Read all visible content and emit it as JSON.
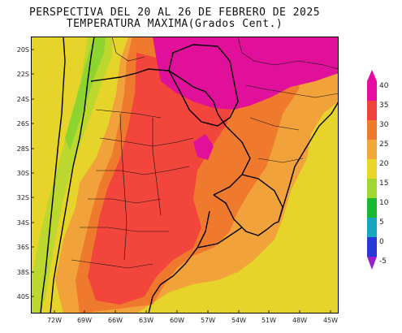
{
  "title": {
    "line1": "PERSPECTIVA DEL 20 AL 26 DE FEBRERO DE 2025",
    "line2": "TEMPERATURA MAXIMA(Grados Cent.)"
  },
  "axes": {
    "lat_labels": [
      "20S",
      "22S",
      "24S",
      "26S",
      "28S",
      "30S",
      "32S",
      "34S",
      "36S",
      "38S",
      "40S"
    ],
    "lon_labels": [
      "72W",
      "69W",
      "66W",
      "63W",
      "60W",
      "57W",
      "54W",
      "51W",
      "48W",
      "45W"
    ]
  },
  "legend": {
    "ticks": [
      "40",
      "35",
      "30",
      "25",
      "20",
      "15",
      "10",
      "5",
      "0",
      "-5"
    ],
    "colors": [
      "#e60ca0",
      "#f0413c",
      "#f07a2c",
      "#f2a838",
      "#e8d628",
      "#a0d830",
      "#18b830",
      "#14a8c0",
      "#2838d8",
      "#9a20c8"
    ]
  },
  "palette": {
    "magenta": "#e0109a",
    "red": "#f2453c",
    "dark_orange": "#ef7a2e",
    "orange": "#f2a23a",
    "yellow": "#e6d42a",
    "yellow_green": "#bcd82e",
    "green": "#8ed430"
  }
}
